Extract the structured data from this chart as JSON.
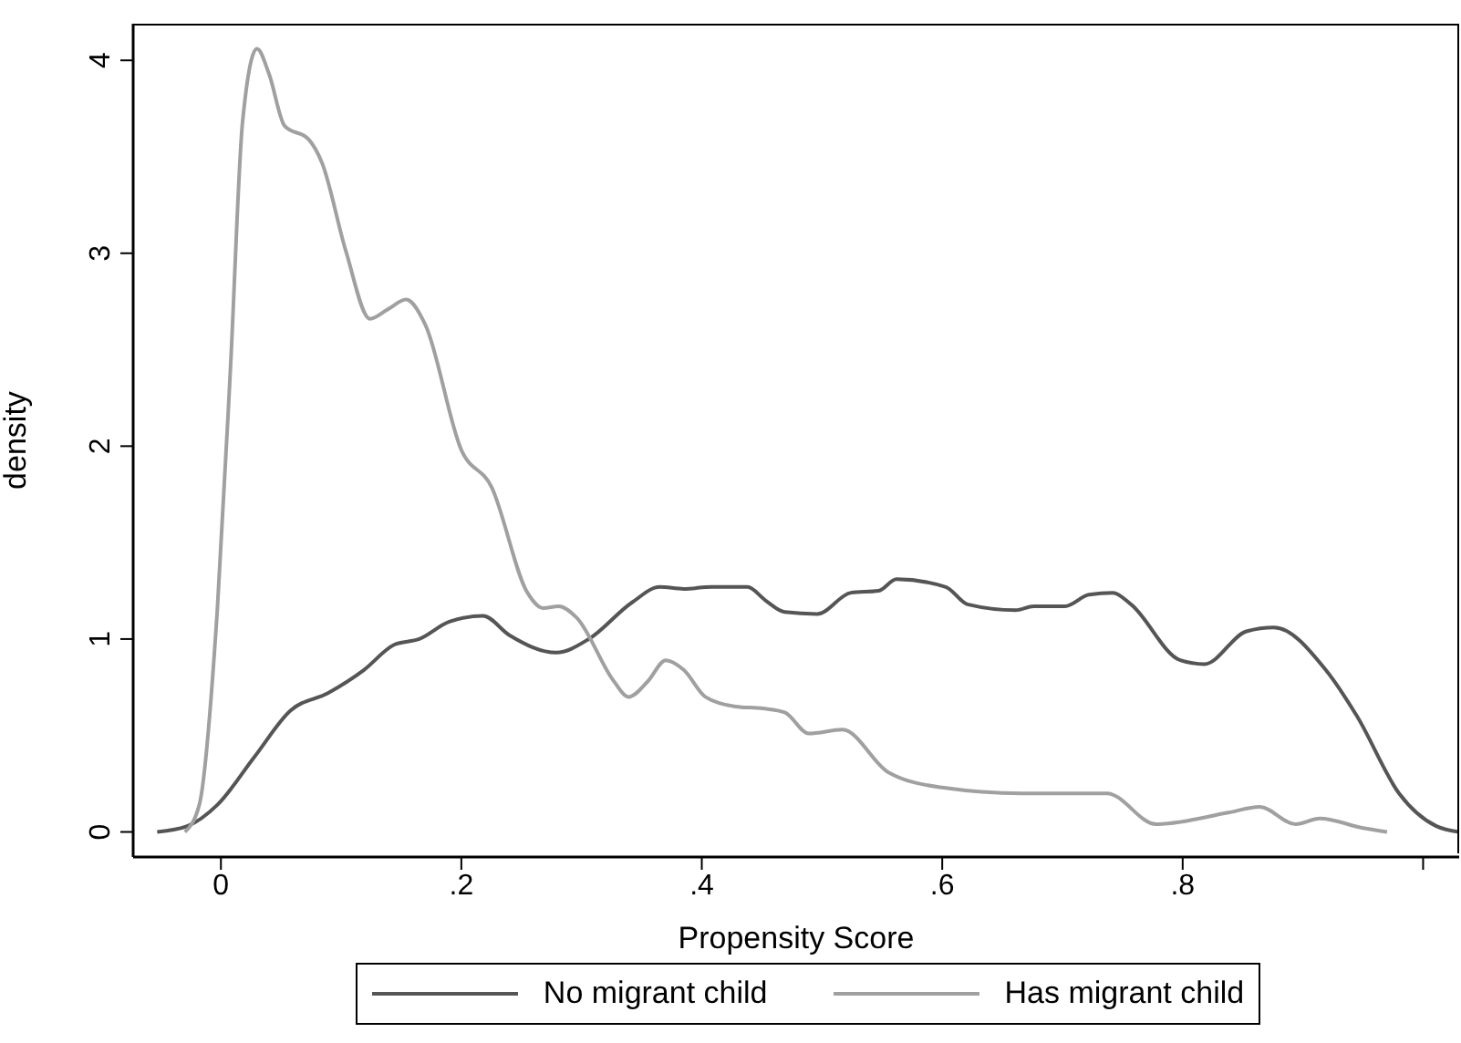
{
  "chart_data": {
    "type": "line",
    "xlabel": "Propensity Score",
    "ylabel": "density",
    "xlim": [
      -0.073,
      1.03
    ],
    "ylim": [
      -0.13,
      4.19
    ],
    "xticks": [
      0,
      {
        "value": 0.2,
        "label": ".2"
      },
      {
        "value": 0.4,
        "label": ".4"
      },
      {
        "value": 0.6,
        "label": ".6"
      },
      {
        "value": 0.8,
        "label": ".8"
      },
      {
        "value": 1,
        "label": null
      }
    ],
    "yticks": [
      0,
      1,
      2,
      3,
      4
    ],
    "legend": "bottom",
    "marker": "none",
    "line_style": "solid",
    "series": [
      {
        "name": "No migrant child",
        "color": "#555555",
        "x": [
          -0.053,
          -0.028,
          -0.003,
          0.028,
          0.058,
          0.089,
          0.119,
          0.144,
          0.165,
          0.19,
          0.218,
          0.24,
          0.279,
          0.306,
          0.342,
          0.365,
          0.385,
          0.408,
          0.438,
          0.453,
          0.469,
          0.496,
          0.524,
          0.547,
          0.562,
          0.603,
          0.621,
          0.661,
          0.676,
          0.702,
          0.722,
          0.742,
          0.757,
          0.798,
          0.818,
          0.853,
          0.876,
          0.919,
          0.945,
          0.98,
          1.011,
          1.03
        ],
        "values": [
          0,
          0.03,
          0.14,
          0.39,
          0.63,
          0.72,
          0.84,
          0.97,
          1.0,
          1.09,
          1.12,
          1.02,
          0.93,
          1.0,
          1.19,
          1.27,
          1.26,
          1.27,
          1.27,
          1.2,
          1.14,
          1.13,
          1.24,
          1.25,
          1.31,
          1.27,
          1.18,
          1.15,
          1.17,
          1.17,
          1.23,
          1.24,
          1.18,
          0.89,
          0.87,
          1.04,
          1.06,
          0.84,
          0.6,
          0.2,
          0.03,
          0
        ]
      },
      {
        "name": "Has migrant child",
        "color": "#a0a0a0",
        "x": [
          -0.03,
          -0.018,
          -0.003,
          0.008,
          0.018,
          0.03,
          0.04,
          0.053,
          0.073,
          0.084,
          0.104,
          0.124,
          0.139,
          0.154,
          0.17,
          0.2,
          0.225,
          0.255,
          0.268,
          0.281,
          0.296,
          0.327,
          0.339,
          0.355,
          0.37,
          0.385,
          0.403,
          0.428,
          0.451,
          0.469,
          0.489,
          0.517,
          0.555,
          0.6,
          0.666,
          0.737,
          0.778,
          0.838,
          0.864,
          0.894,
          0.914,
          0.95,
          0.97
        ],
        "values": [
          0,
          0.14,
          1.15,
          2.41,
          3.68,
          4.06,
          3.93,
          3.66,
          3.59,
          3.47,
          3.01,
          2.66,
          2.71,
          2.76,
          2.63,
          1.98,
          1.79,
          1.24,
          1.16,
          1.17,
          1.11,
          0.78,
          0.7,
          0.78,
          0.89,
          0.84,
          0.7,
          0.65,
          0.64,
          0.62,
          0.51,
          0.53,
          0.31,
          0.23,
          0.2,
          0.2,
          0.04,
          0.1,
          0.13,
          0.04,
          0.07,
          0.02,
          0
        ]
      }
    ]
  }
}
